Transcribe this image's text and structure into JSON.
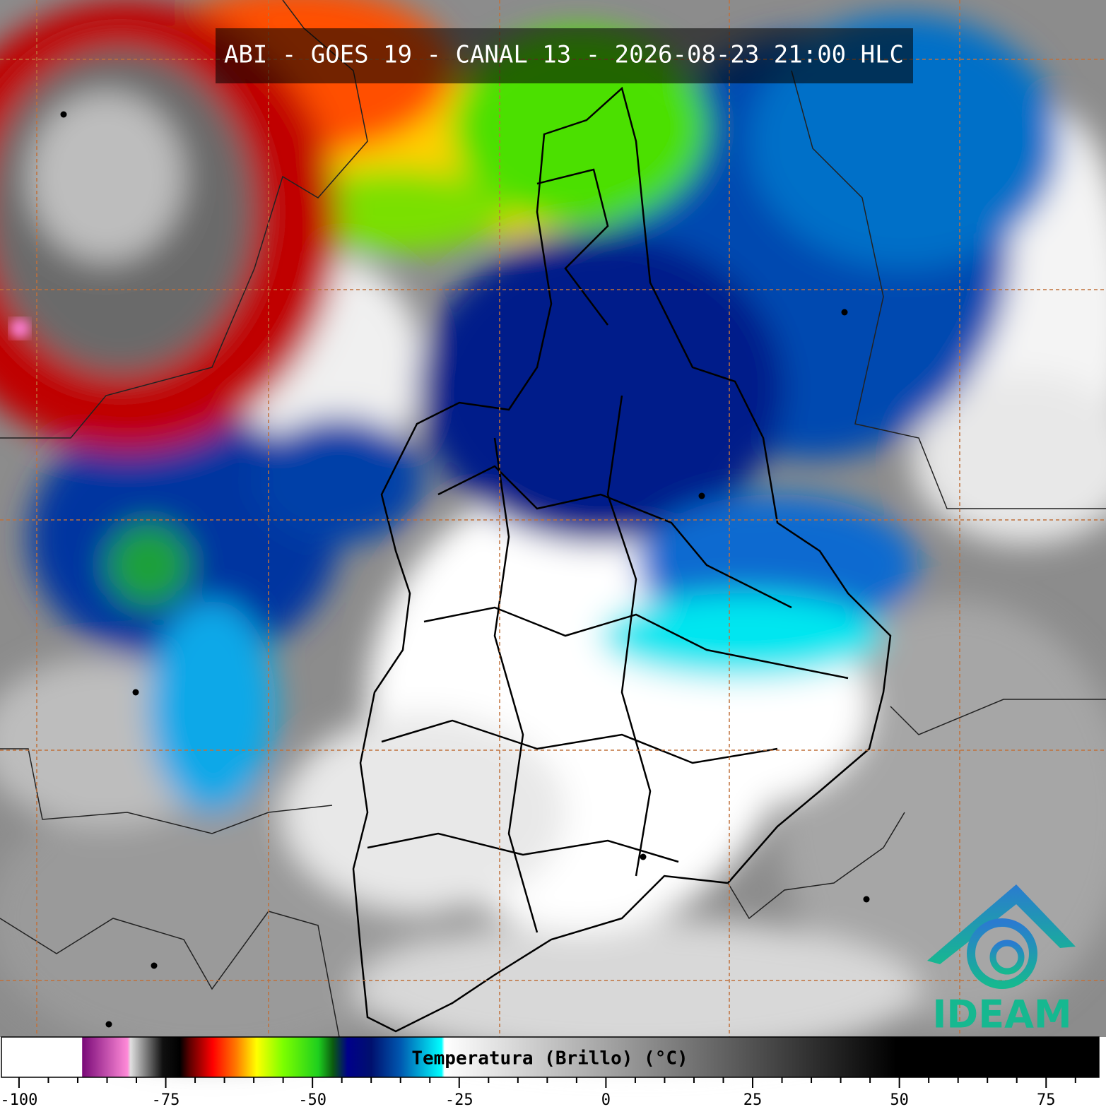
{
  "title": "ABI - GOES 19 - CANAL 13 - 2026-08-23 21:00 HLC",
  "colorbar": {
    "label": "Temperatura (Brillo) (°C)",
    "xlim": [
      -103,
      84
    ],
    "xticks": [
      -100,
      -75,
      -50,
      -25,
      0,
      25,
      50,
      75
    ],
    "minor_ticks": [
      -95,
      -90,
      -85,
      -80,
      -70,
      -65,
      -60,
      -55,
      -45,
      -40,
      -35,
      -30,
      -20,
      -15,
      -10,
      -5,
      5,
      10,
      15,
      20,
      30,
      35,
      40,
      45,
      55,
      60,
      65,
      70,
      80
    ],
    "stops": [
      {
        "value": -103,
        "color": "#ffffff"
      },
      {
        "value": -89.3,
        "color": "#ffffff"
      },
      {
        "value": -89.2,
        "color": "#7a0a78"
      },
      {
        "value": -81.5,
        "color": "#ff8ad8"
      },
      {
        "value": -81,
        "color": "#e0e0e0"
      },
      {
        "value": -75.5,
        "color": "#101010"
      },
      {
        "value": -72.6,
        "color": "#000000"
      },
      {
        "value": -71,
        "color": "#5a0000"
      },
      {
        "value": -67,
        "color": "#ff0000"
      },
      {
        "value": -63,
        "color": "#ff7a00"
      },
      {
        "value": -59.5,
        "color": "#ffff00"
      },
      {
        "value": -55,
        "color": "#7cff00"
      },
      {
        "value": -49,
        "color": "#1ecf1e"
      },
      {
        "value": -46.5,
        "color": "#0b5a10"
      },
      {
        "value": -44,
        "color": "#00008a"
      },
      {
        "value": -40,
        "color": "#00106e"
      },
      {
        "value": -35,
        "color": "#0058b0"
      },
      {
        "value": -28,
        "color": "#00ffff"
      },
      {
        "value": -27.5,
        "color": "#ffffff"
      },
      {
        "value": 49.5,
        "color": "#000000"
      },
      {
        "value": 84,
        "color": "#000000"
      }
    ]
  },
  "logo": "IDEAM"
}
